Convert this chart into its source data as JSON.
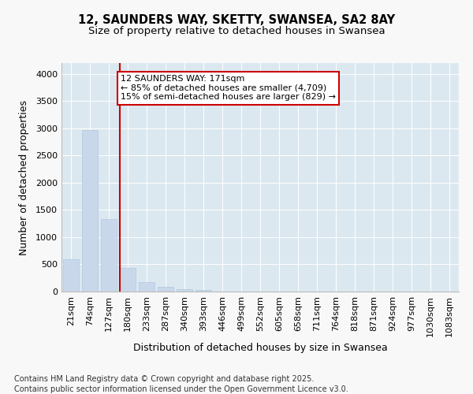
{
  "title_line1": "12, SAUNDERS WAY, SKETTY, SWANSEA, SA2 8AY",
  "title_line2": "Size of property relative to detached houses in Swansea",
  "xlabel": "Distribution of detached houses by size in Swansea",
  "ylabel": "Number of detached properties",
  "categories": [
    "21sqm",
    "74sqm",
    "127sqm",
    "180sqm",
    "233sqm",
    "287sqm",
    "340sqm",
    "393sqm",
    "446sqm",
    "499sqm",
    "552sqm",
    "605sqm",
    "658sqm",
    "711sqm",
    "764sqm",
    "818sqm",
    "871sqm",
    "924sqm",
    "977sqm",
    "1030sqm",
    "1083sqm"
  ],
  "values": [
    590,
    2970,
    1330,
    430,
    175,
    90,
    45,
    25,
    0,
    0,
    0,
    0,
    0,
    0,
    0,
    0,
    0,
    0,
    0,
    0,
    0
  ],
  "bar_color": "#c8d8ea",
  "bar_edgecolor": "#b0c8e0",
  "vline_color": "#cc0000",
  "vline_x_idx": 2.575,
  "annotation_text": "12 SAUNDERS WAY: 171sqm\n← 85% of detached houses are smaller (4,709)\n15% of semi-detached houses are larger (829) →",
  "annotation_box_edgecolor": "#cc0000",
  "ylim": [
    0,
    4200
  ],
  "yticks": [
    0,
    500,
    1000,
    1500,
    2000,
    2500,
    3000,
    3500,
    4000
  ],
  "fig_bg": "#f8f8f8",
  "plot_bg": "#dce8f0",
  "grid_color": "#ffffff",
  "footer_line1": "Contains HM Land Registry data © Crown copyright and database right 2025.",
  "footer_line2": "Contains public sector information licensed under the Open Government Licence v3.0.",
  "title_fontsize": 10.5,
  "subtitle_fontsize": 9.5,
  "axis_label_fontsize": 9,
  "tick_fontsize": 8,
  "annotation_fontsize": 8,
  "footer_fontsize": 7
}
